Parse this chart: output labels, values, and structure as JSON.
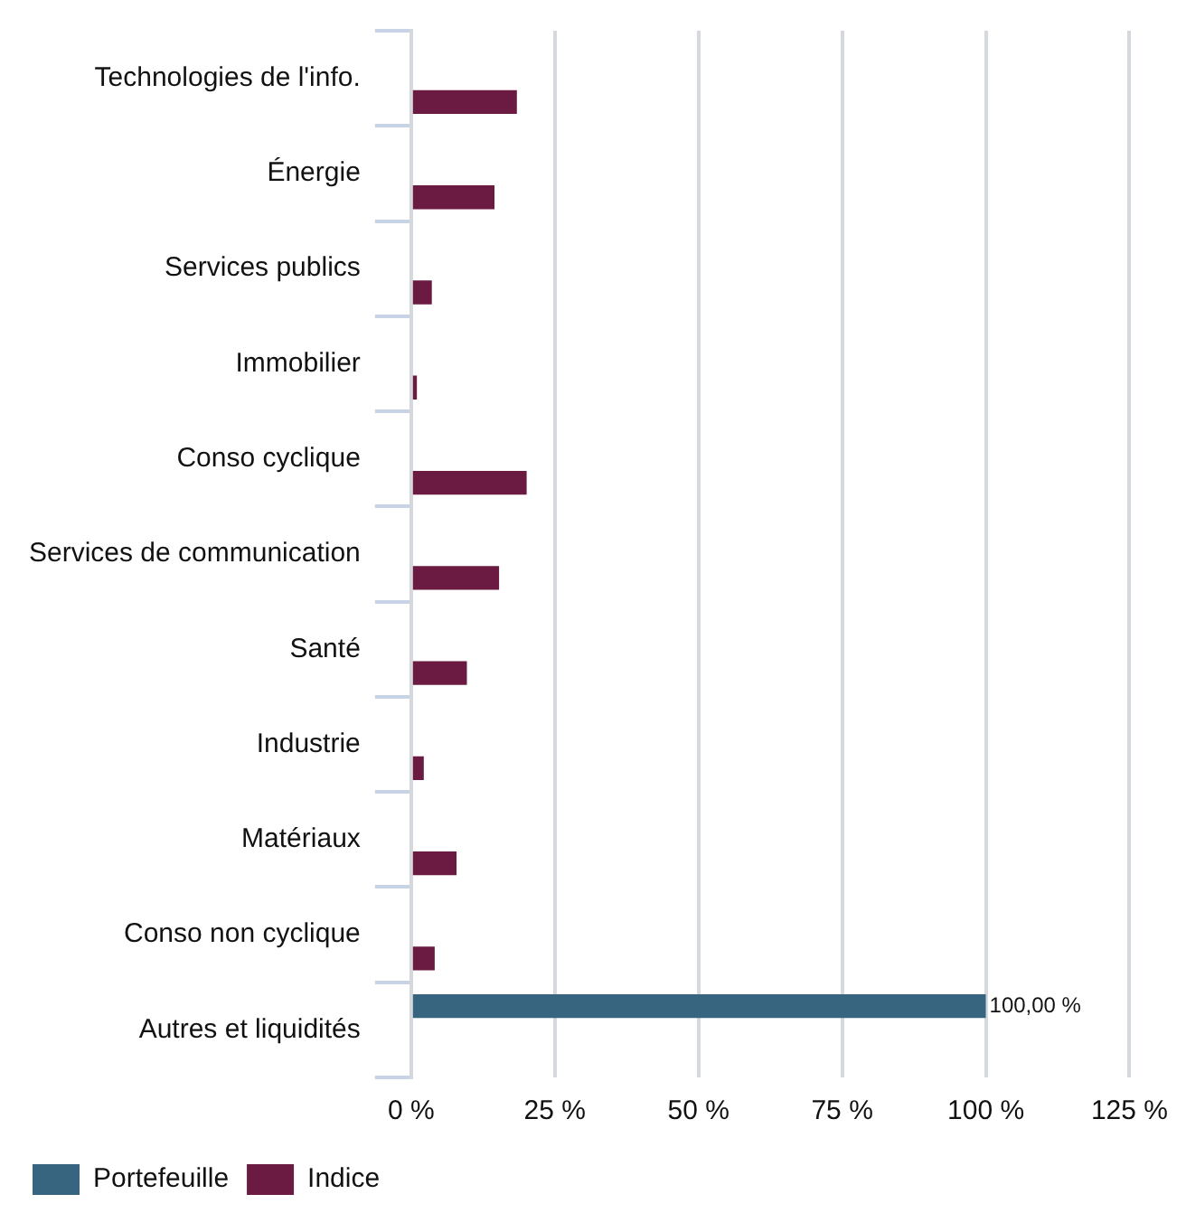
{
  "chart_data": {
    "type": "bar",
    "orientation": "horizontal",
    "categories": [
      "Technologies de l'info.",
      "Énergie",
      "Services publics",
      "Immobilier",
      "Conso cyclique",
      "Services de communication",
      "Santé",
      "Industrie",
      "Matériaux",
      "Conso non cyclique",
      "Autres et liquidités"
    ],
    "series": [
      {
        "name": "Portefeuille",
        "color": "#37657f",
        "values": [
          0,
          0,
          0,
          0,
          0,
          0,
          0,
          0,
          0,
          0,
          100
        ],
        "value_labels": [
          null,
          null,
          null,
          null,
          null,
          null,
          null,
          null,
          null,
          null,
          "100,00 %"
        ]
      },
      {
        "name": "Indice",
        "color": "#6b1a42",
        "values": [
          18.4,
          14.5,
          3.6,
          1.0,
          20.1,
          15.3,
          9.7,
          2.2,
          7.9,
          4.1,
          0
        ]
      }
    ],
    "xlim": [
      0,
      125
    ],
    "xticks": [
      {
        "value": 0,
        "label": "0 %"
      },
      {
        "value": 25,
        "label": "25 %"
      },
      {
        "value": 50,
        "label": "50 %"
      },
      {
        "value": 75,
        "label": "75 %"
      },
      {
        "value": 100,
        "label": "100 %"
      },
      {
        "value": 125,
        "label": "125 %"
      }
    ],
    "grid": "x",
    "legend": "bottom"
  }
}
